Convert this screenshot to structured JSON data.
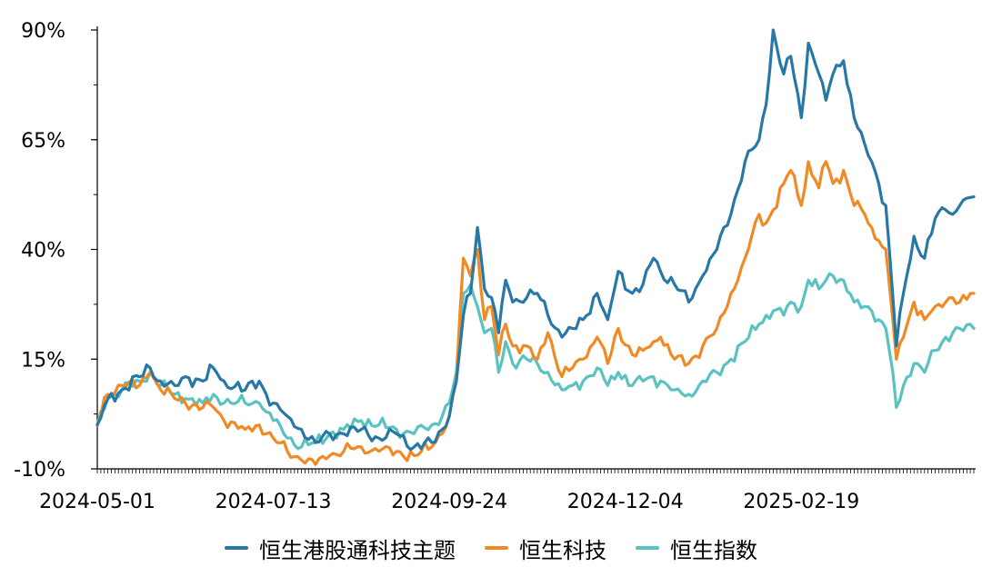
{
  "chart_data": {
    "type": "line",
    "title": "",
    "xlabel": "",
    "ylabel": "",
    "ylim": [
      -10,
      90
    ],
    "y_ticks": [
      "90%",
      "65%",
      "40%",
      "15%",
      "-10%"
    ],
    "y_tick_values": [
      90,
      65,
      40,
      15,
      -10
    ],
    "x_tick_labels": [
      "2024-05-01",
      "2024-07-13",
      "2024-09-24",
      "2024-12-04",
      "2025-02-19"
    ],
    "x_tick_index": [
      0,
      50,
      100,
      150,
      200
    ],
    "n_points": 250,
    "grid": false,
    "legend_position": "bottom",
    "series": [
      {
        "name": "恒生港股通科技主题",
        "color": "#2878a6",
        "anchors": [
          [
            0,
            0
          ],
          [
            3,
            6
          ],
          [
            7,
            8
          ],
          [
            12,
            11
          ],
          [
            15,
            13
          ],
          [
            18,
            10
          ],
          [
            22,
            9
          ],
          [
            25,
            11
          ],
          [
            30,
            10
          ],
          [
            33,
            13
          ],
          [
            36,
            10
          ],
          [
            42,
            8
          ],
          [
            46,
            10
          ],
          [
            48,
            7
          ],
          [
            50,
            5
          ],
          [
            54,
            2
          ],
          [
            58,
            -1
          ],
          [
            62,
            -4
          ],
          [
            66,
            -2
          ],
          [
            70,
            -2
          ],
          [
            75,
            -1
          ],
          [
            80,
            -3
          ],
          [
            85,
            -2
          ],
          [
            90,
            -5
          ],
          [
            95,
            -4
          ],
          [
            98,
            -1
          ],
          [
            100,
            2
          ],
          [
            102,
            10
          ],
          [
            104,
            25
          ],
          [
            106,
            30
          ],
          [
            108,
            45
          ],
          [
            110,
            31
          ],
          [
            112,
            29
          ],
          [
            114,
            21
          ],
          [
            116,
            33
          ],
          [
            118,
            28
          ],
          [
            122,
            29
          ],
          [
            125,
            30
          ],
          [
            128,
            25
          ],
          [
            132,
            20
          ],
          [
            135,
            22
          ],
          [
            138,
            24
          ],
          [
            142,
            30
          ],
          [
            145,
            24
          ],
          [
            148,
            35
          ],
          [
            152,
            30
          ],
          [
            155,
            32
          ],
          [
            158,
            38
          ],
          [
            160,
            35
          ],
          [
            164,
            32
          ],
          [
            168,
            28
          ],
          [
            172,
            34
          ],
          [
            176,
            40
          ],
          [
            180,
            48
          ],
          [
            184,
            60
          ],
          [
            188,
            65
          ],
          [
            190,
            73
          ],
          [
            192,
            90
          ],
          [
            195,
            80
          ],
          [
            197,
            84
          ],
          [
            200,
            70
          ],
          [
            202,
            87
          ],
          [
            205,
            80
          ],
          [
            207,
            74
          ],
          [
            209,
            80
          ],
          [
            212,
            83
          ],
          [
            215,
            70
          ],
          [
            218,
            64
          ],
          [
            220,
            60
          ],
          [
            222,
            55
          ],
          [
            224,
            50
          ],
          [
            225,
            40
          ],
          [
            227,
            18
          ],
          [
            229,
            30
          ],
          [
            232,
            43
          ],
          [
            235,
            38
          ],
          [
            238,
            47
          ],
          [
            241,
            49
          ],
          [
            243,
            48
          ],
          [
            245,
            50
          ],
          [
            249,
            52
          ]
        ]
      },
      {
        "name": "恒生科技",
        "color": "#f08a24",
        "anchors": [
          [
            0,
            0
          ],
          [
            3,
            7
          ],
          [
            7,
            9
          ],
          [
            12,
            9
          ],
          [
            15,
            12
          ],
          [
            18,
            8
          ],
          [
            22,
            6
          ],
          [
            25,
            5
          ],
          [
            30,
            4
          ],
          [
            33,
            4
          ],
          [
            36,
            1
          ],
          [
            42,
            -1
          ],
          [
            46,
            0
          ],
          [
            48,
            -2
          ],
          [
            50,
            -3
          ],
          [
            54,
            -6
          ],
          [
            58,
            -8
          ],
          [
            62,
            -9
          ],
          [
            66,
            -7
          ],
          [
            70,
            -6
          ],
          [
            75,
            -5
          ],
          [
            80,
            -6
          ],
          [
            85,
            -6
          ],
          [
            90,
            -7
          ],
          [
            95,
            -5
          ],
          [
            98,
            -2
          ],
          [
            100,
            2
          ],
          [
            102,
            10
          ],
          [
            104,
            38
          ],
          [
            106,
            34
          ],
          [
            108,
            40
          ],
          [
            110,
            24
          ],
          [
            112,
            27
          ],
          [
            114,
            16
          ],
          [
            116,
            23
          ],
          [
            118,
            18
          ],
          [
            122,
            18
          ],
          [
            125,
            15
          ],
          [
            128,
            21
          ],
          [
            132,
            11
          ],
          [
            135,
            13
          ],
          [
            138,
            15
          ],
          [
            142,
            20
          ],
          [
            145,
            14
          ],
          [
            148,
            22
          ],
          [
            152,
            16
          ],
          [
            155,
            17
          ],
          [
            158,
            19
          ],
          [
            160,
            20
          ],
          [
            164,
            15
          ],
          [
            168,
            14
          ],
          [
            172,
            18
          ],
          [
            176,
            22
          ],
          [
            180,
            30
          ],
          [
            184,
            38
          ],
          [
            188,
            48
          ],
          [
            190,
            46
          ],
          [
            192,
            49
          ],
          [
            195,
            55
          ],
          [
            197,
            58
          ],
          [
            200,
            50
          ],
          [
            202,
            60
          ],
          [
            205,
            54
          ],
          [
            207,
            60
          ],
          [
            209,
            55
          ],
          [
            212,
            58
          ],
          [
            215,
            50
          ],
          [
            218,
            48
          ],
          [
            220,
            45
          ],
          [
            222,
            42
          ],
          [
            224,
            40
          ],
          [
            225,
            32
          ],
          [
            227,
            15
          ],
          [
            229,
            20
          ],
          [
            232,
            28
          ],
          [
            235,
            24
          ],
          [
            238,
            27
          ],
          [
            241,
            28
          ],
          [
            243,
            29
          ],
          [
            245,
            28
          ],
          [
            249,
            30
          ]
        ]
      },
      {
        "name": "恒生指数",
        "color": "#5bc2c2",
        "anchors": [
          [
            0,
            0
          ],
          [
            3,
            6
          ],
          [
            7,
            8
          ],
          [
            12,
            10
          ],
          [
            15,
            12
          ],
          [
            18,
            9
          ],
          [
            22,
            7
          ],
          [
            25,
            6
          ],
          [
            30,
            5
          ],
          [
            33,
            7
          ],
          [
            36,
            5
          ],
          [
            42,
            5
          ],
          [
            46,
            5
          ],
          [
            48,
            3
          ],
          [
            50,
            1
          ],
          [
            54,
            -3
          ],
          [
            58,
            -5
          ],
          [
            62,
            -4
          ],
          [
            66,
            -2
          ],
          [
            70,
            -1
          ],
          [
            75,
            1
          ],
          [
            80,
            0
          ],
          [
            85,
            -1
          ],
          [
            90,
            -2
          ],
          [
            95,
            0
          ],
          [
            98,
            2
          ],
          [
            100,
            5
          ],
          [
            102,
            12
          ],
          [
            104,
            30
          ],
          [
            106,
            32
          ],
          [
            108,
            27
          ],
          [
            110,
            21
          ],
          [
            112,
            22
          ],
          [
            114,
            12
          ],
          [
            116,
            19
          ],
          [
            118,
            14
          ],
          [
            122,
            15
          ],
          [
            125,
            14
          ],
          [
            128,
            12
          ],
          [
            132,
            8
          ],
          [
            135,
            9
          ],
          [
            138,
            10
          ],
          [
            142,
            13
          ],
          [
            145,
            9
          ],
          [
            148,
            12
          ],
          [
            152,
            9
          ],
          [
            155,
            10
          ],
          [
            158,
            11
          ],
          [
            160,
            10
          ],
          [
            164,
            8
          ],
          [
            168,
            7
          ],
          [
            172,
            10
          ],
          [
            176,
            12
          ],
          [
            180,
            15
          ],
          [
            184,
            19
          ],
          [
            188,
            23
          ],
          [
            190,
            25
          ],
          [
            192,
            26
          ],
          [
            195,
            25
          ],
          [
            197,
            28
          ],
          [
            200,
            27
          ],
          [
            202,
            33
          ],
          [
            205,
            31
          ],
          [
            207,
            33
          ],
          [
            209,
            34
          ],
          [
            212,
            33
          ],
          [
            215,
            28
          ],
          [
            218,
            27
          ],
          [
            220,
            26
          ],
          [
            222,
            24
          ],
          [
            224,
            22
          ],
          [
            225,
            17
          ],
          [
            227,
            4
          ],
          [
            229,
            9
          ],
          [
            232,
            14
          ],
          [
            235,
            12
          ],
          [
            238,
            17
          ],
          [
            241,
            20
          ],
          [
            243,
            21
          ],
          [
            245,
            22
          ],
          [
            249,
            22
          ]
        ]
      }
    ]
  }
}
